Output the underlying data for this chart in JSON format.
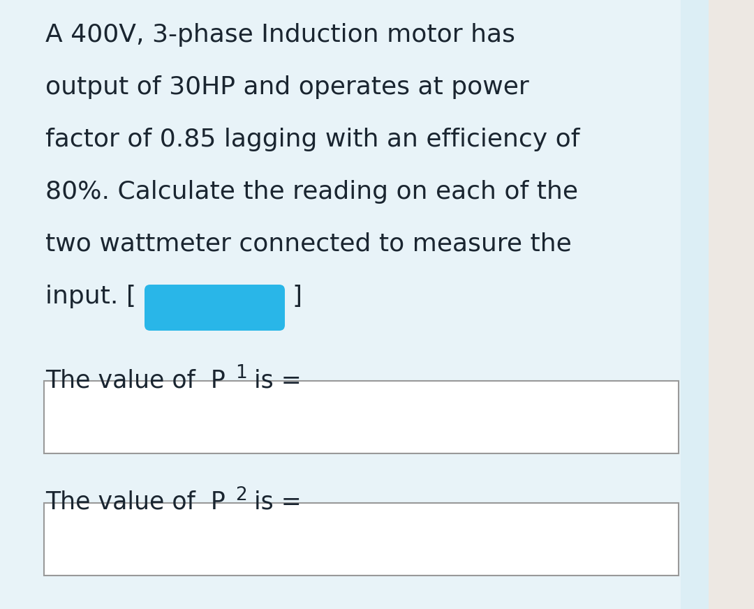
{
  "bg_color": "#e8f3f8",
  "side_panel_color_inner": "#dceef5",
  "side_panel_color_outer": "#ede8e3",
  "text_color": "#1a2530",
  "blob_color": "#29b6e8",
  "box_fill": "#ffffff",
  "box_edge": "#999999",
  "font_size_main": 26,
  "font_size_label": 25,
  "font_size_sub": 19,
  "lines": [
    "A 400V, 3-phase Induction motor has",
    "output of 30HP and operates at power",
    "factor of 0.85 lagging with an efficiency of",
    "80%. Calculate the reading on each of the",
    "two wattmeter connected to measure the"
  ],
  "input_line_prefix": "input. [",
  "input_line_suffix": "]",
  "p1_label_prefix": "The value of  P",
  "p1_subscript": "1",
  "p1_label_suffix": " is =",
  "p2_label_prefix": "The value of  P",
  "p2_subscript": "2",
  "p2_label_suffix": " is ="
}
